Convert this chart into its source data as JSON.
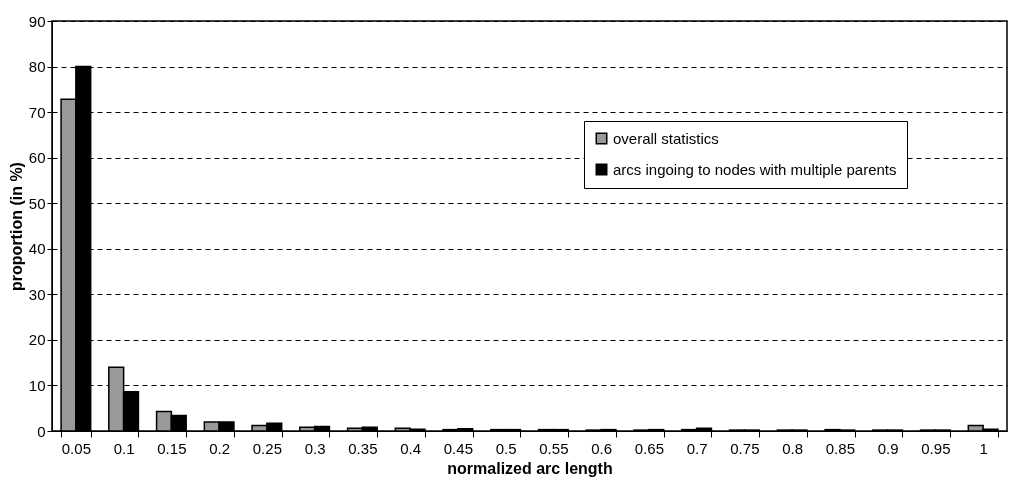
{
  "chart_data": {
    "type": "bar",
    "xlabel": "normalized arc length",
    "ylabel": "proportion (in %)",
    "categories": [
      "0.05",
      "0.1",
      "0.15",
      "0.2",
      "0.25",
      "0.3",
      "0.35",
      "0.4",
      "0.45",
      "0.5",
      "0.55",
      "0.6",
      "0.65",
      "0.7",
      "0.75",
      "0.8",
      "0.85",
      "0.9",
      "0.95",
      "1"
    ],
    "series": [
      {
        "name": "overall statistics",
        "color": "#999999",
        "values": [
          72.8,
          14,
          4.3,
          2,
          1.2,
          0.8,
          0.6,
          0.6,
          0.3,
          0.3,
          0.3,
          0.2,
          0.2,
          0.3,
          0.2,
          0.2,
          0.3,
          0.2,
          0.2,
          1.2
        ]
      },
      {
        "name": "arcs ingoing to nodes with multiple parents",
        "color": "#000000",
        "values": [
          80,
          8.6,
          3.4,
          2,
          1.7,
          1,
          0.8,
          0.4,
          0.5,
          0.3,
          0.3,
          0.3,
          0.3,
          0.6,
          0.2,
          0.2,
          0.2,
          0.2,
          0.2,
          0.4
        ]
      }
    ],
    "ylim": [
      0,
      90
    ],
    "yticks": [
      0,
      10,
      20,
      30,
      40,
      50,
      60,
      70,
      80,
      90
    ],
    "grid": "y",
    "legend": "top right"
  }
}
